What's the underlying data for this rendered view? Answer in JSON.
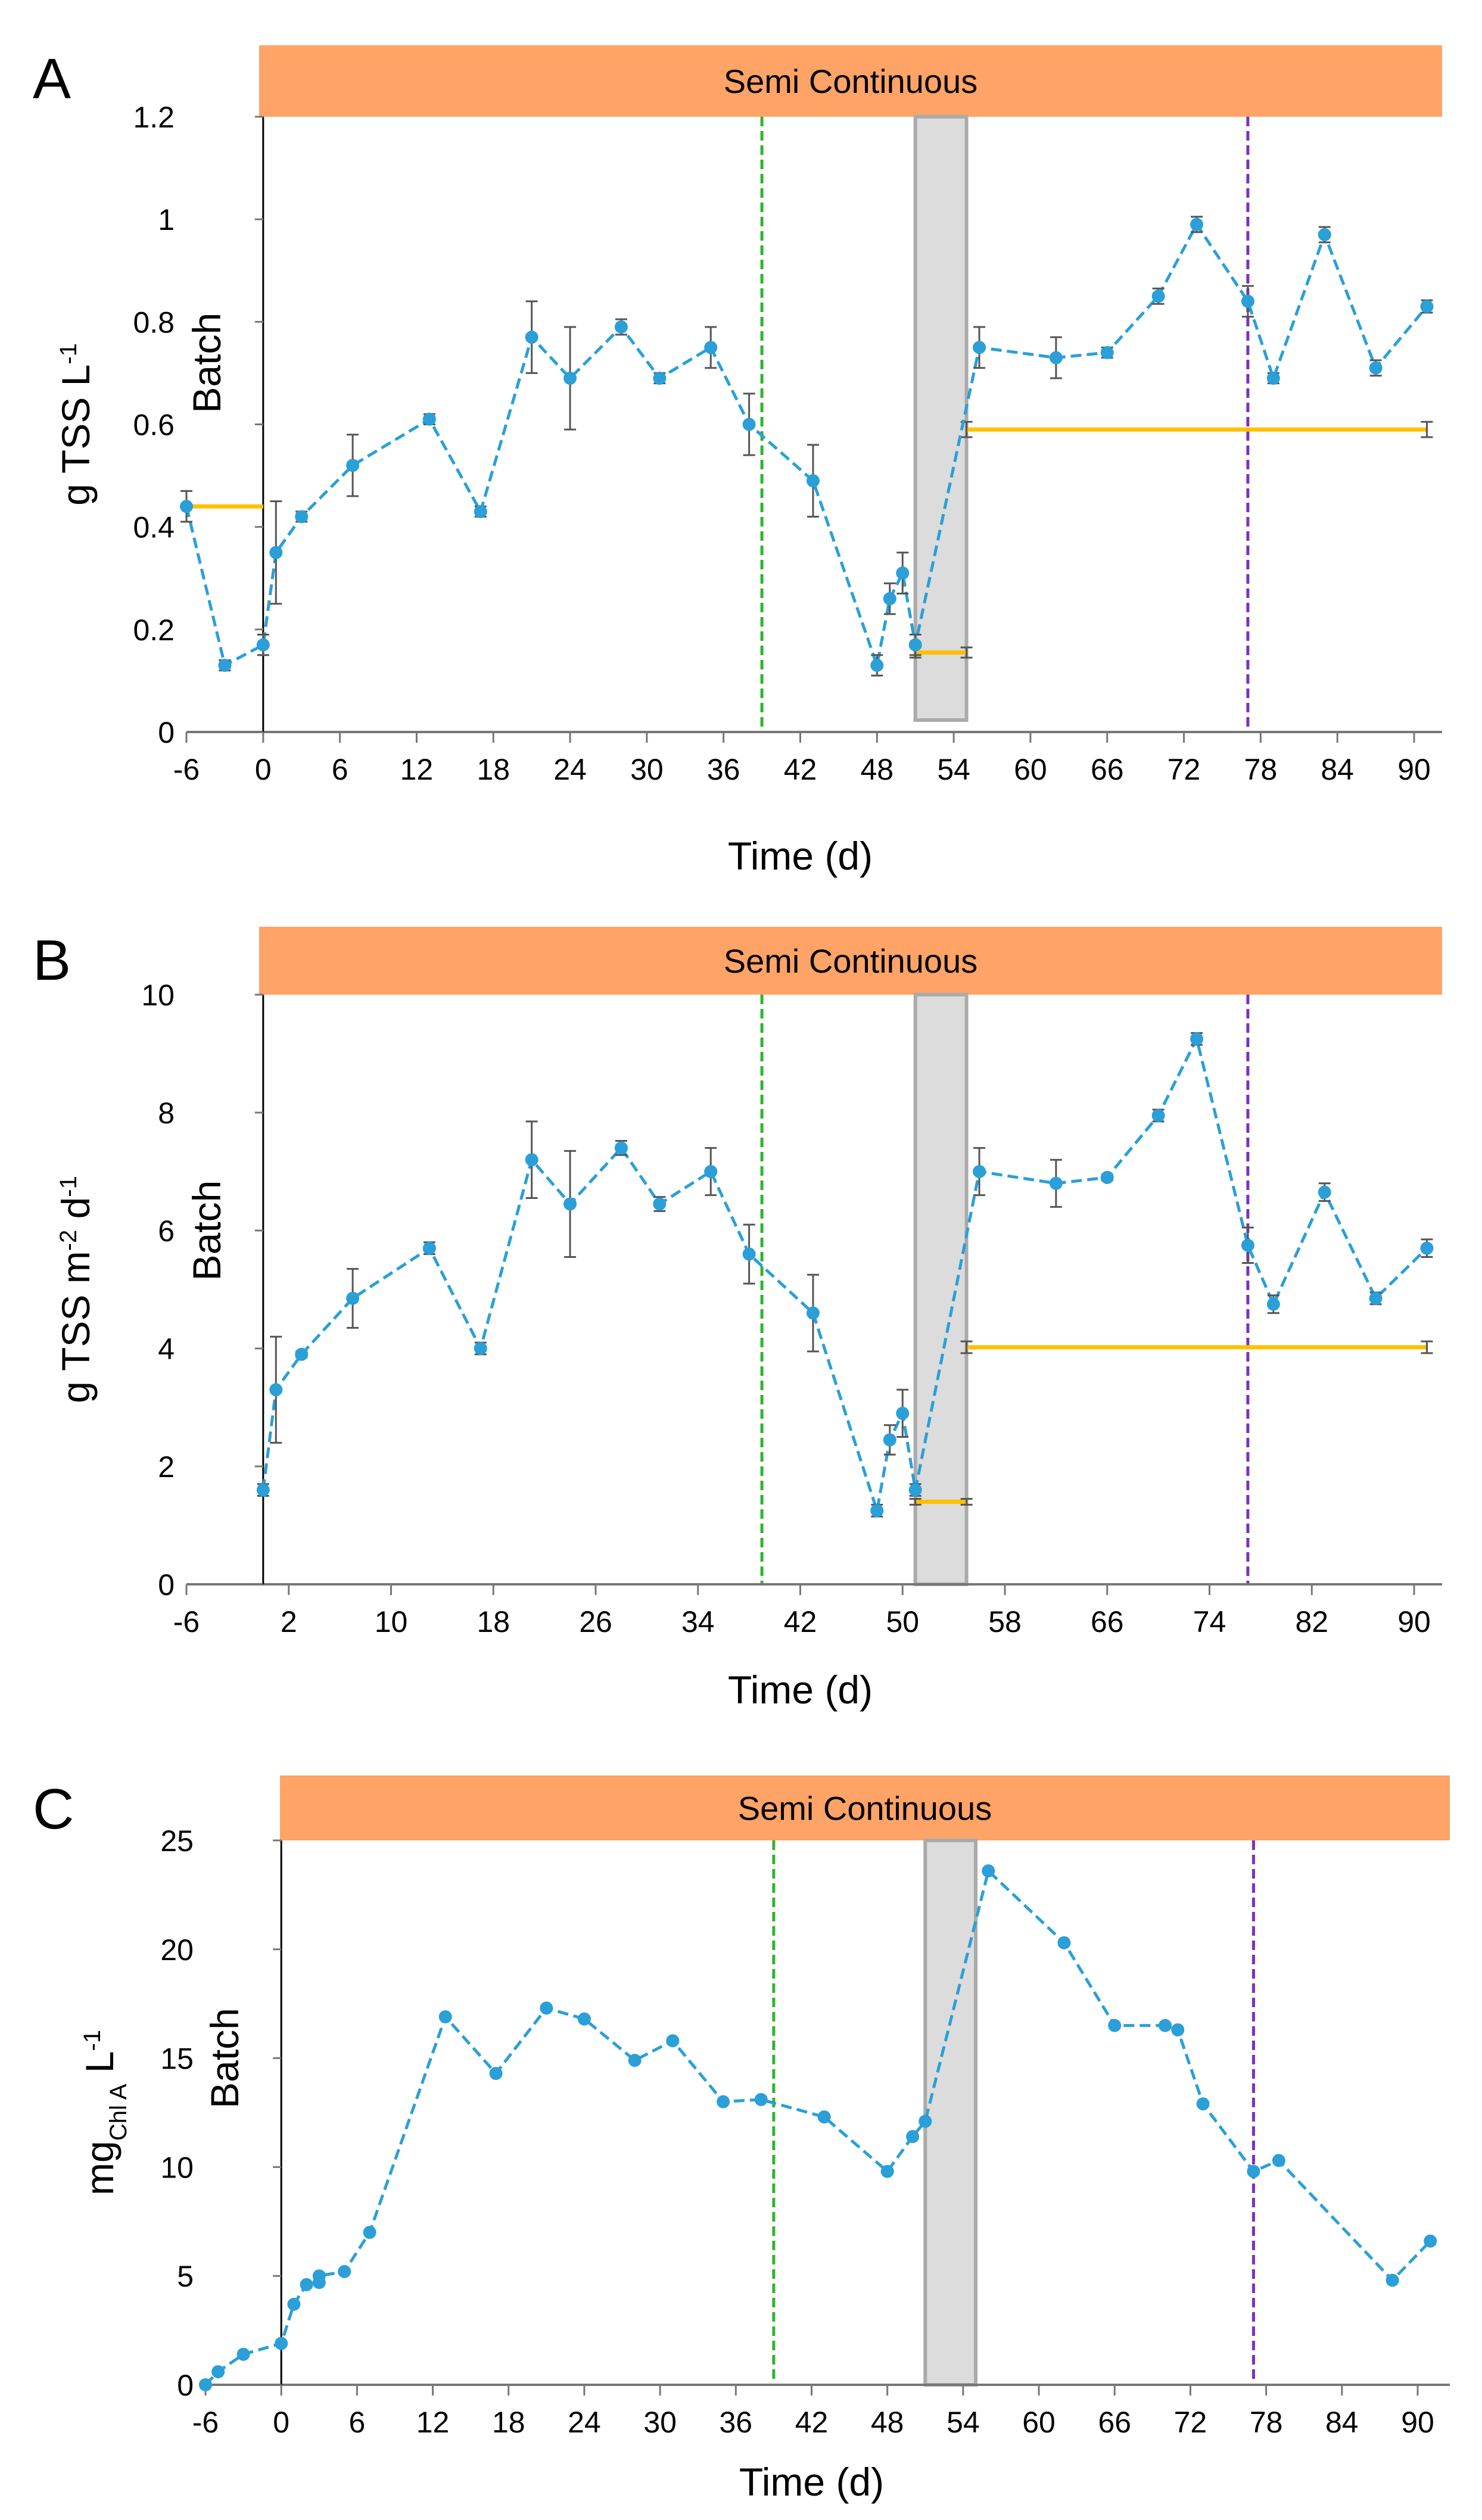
{
  "colors": {
    "series": "#2a9fd8",
    "band": "#ffa366",
    "gray": "#dcdcdc",
    "green": "#2db52d",
    "purple": "#7f2fbf",
    "yellow": "#ffc000",
    "err": "#555555"
  },
  "chart_data": [
    {
      "type": "line",
      "panel": "A",
      "band_label": "Semi Continuous",
      "batch_label": "Batch",
      "xlabel": "Time (d)",
      "ylabel": "g TSS L",
      "ylabel_sup": "-1",
      "xlim": [
        -6,
        92
      ],
      "ylim": [
        0,
        1.2
      ],
      "xticks": [
        -6,
        0,
        6,
        12,
        18,
        24,
        30,
        36,
        42,
        48,
        54,
        60,
        66,
        72,
        78,
        84,
        90
      ],
      "yticks": [
        0,
        0.2,
        0.4,
        0.6,
        0.8,
        1,
        1.2
      ],
      "ytick_labels": [
        "0",
        "0.2",
        "0.4",
        "0.6",
        "0.8",
        "1",
        "1.2"
      ],
      "gray_span": [
        51,
        55
      ],
      "green_line": 39,
      "purple_line": 77,
      "x": [
        -6,
        -3,
        0,
        1,
        3,
        7,
        13,
        17,
        21,
        24,
        28,
        31,
        35,
        38,
        43,
        48,
        49,
        50,
        51,
        56,
        62,
        66,
        70,
        73,
        77,
        79,
        83,
        87,
        91
      ],
      "y": [
        0.44,
        0.13,
        0.17,
        0.35,
        0.42,
        0.52,
        0.61,
        0.43,
        0.77,
        0.69,
        0.79,
        0.69,
        0.75,
        0.6,
        0.49,
        0.13,
        0.26,
        0.31,
        0.17,
        0.75,
        0.73,
        0.74,
        0.85,
        0.99,
        0.84,
        0.69,
        0.97,
        0.71,
        0.83
      ],
      "err": [
        0.03,
        0.01,
        0.02,
        0.1,
        0.01,
        0.06,
        0.01,
        0.01,
        0.07,
        0.1,
        0.015,
        0.01,
        0.04,
        0.06,
        0.07,
        0.02,
        0.03,
        0.04,
        0.02,
        0.04,
        0.04,
        0.01,
        0.015,
        0.015,
        0.03,
        0.01,
        0.015,
        0.015,
        0.012
      ],
      "mean_lines": [
        {
          "x": [
            -6,
            0
          ],
          "y": 0.44,
          "err": 0
        },
        {
          "x": [
            51,
            55
          ],
          "y": 0.155,
          "err": 0.01
        },
        {
          "x": [
            55,
            91
          ],
          "y": 0.59,
          "err": 0.015
        }
      ]
    },
    {
      "type": "line",
      "panel": "B",
      "band_label": "Semi Continuous",
      "batch_label": "Batch",
      "xlabel": "Time (d)",
      "ylabel": "g TSS m",
      "ylabel_sup": "-2",
      "ylabel_mid": " d",
      "ylabel_sup2": "-1",
      "xlim": [
        -6,
        92
      ],
      "ylim": [
        0,
        10
      ],
      "xticks": [
        -6,
        2,
        10,
        18,
        26,
        34,
        42,
        50,
        58,
        66,
        74,
        82,
        90
      ],
      "yticks": [
        0,
        2,
        4,
        6,
        8,
        10
      ],
      "ytick_labels": [
        "0",
        "2",
        "4",
        "6",
        "8",
        "10"
      ],
      "gray_span": [
        51,
        55
      ],
      "green_line": 39,
      "purple_line": 77,
      "x": [
        0,
        1,
        3,
        7,
        13,
        17,
        21,
        24,
        28,
        31,
        35,
        38,
        43,
        48,
        49,
        50,
        51,
        56,
        62,
        66,
        70,
        73,
        77,
        79,
        83,
        87,
        91
      ],
      "y": [
        1.6,
        3.3,
        3.9,
        4.85,
        5.7,
        4.0,
        7.2,
        6.45,
        7.4,
        6.45,
        7.0,
        5.6,
        4.6,
        1.25,
        2.45,
        2.9,
        1.6,
        7.0,
        6.8,
        6.9,
        7.95,
        9.25,
        5.75,
        4.75,
        6.65,
        4.85,
        5.7
      ],
      "err": [
        0.1,
        0.9,
        0.05,
        0.5,
        0.1,
        0.1,
        0.65,
        0.9,
        0.12,
        0.12,
        0.4,
        0.5,
        0.65,
        0.1,
        0.25,
        0.4,
        0.1,
        0.4,
        0.4,
        0.05,
        0.1,
        0.1,
        0.3,
        0.15,
        0.15,
        0.1,
        0.15
      ],
      "mean_lines": [
        {
          "x": [
            51,
            55
          ],
          "y": 1.4,
          "err": 0.05
        },
        {
          "x": [
            55,
            91
          ],
          "y": 4.02,
          "err": 0.1
        }
      ]
    },
    {
      "type": "line",
      "panel": "C",
      "band_label": "Semi Continuous",
      "batch_label": "Batch",
      "xlabel": "Time (d)",
      "ylabel": "mg",
      "ylabel_sub": "Chl A",
      "ylabel_mid": " L",
      "ylabel_sup": "-1",
      "xlim": [
        -6,
        92
      ],
      "ylim": [
        0,
        25
      ],
      "xticks": [
        -6,
        0,
        6,
        12,
        18,
        24,
        30,
        36,
        42,
        48,
        54,
        60,
        66,
        72,
        78,
        84,
        90
      ],
      "yticks": [
        0,
        5,
        10,
        15,
        20,
        25
      ],
      "ytick_labels": [
        "0",
        "5",
        "10",
        "15",
        "20",
        "25"
      ],
      "gray_span": [
        51,
        55
      ],
      "green_line": 39,
      "purple_line": 77,
      "x": [
        -6,
        -5,
        -3,
        0,
        1,
        2,
        3,
        3,
        5,
        7,
        13,
        17,
        21,
        24,
        28,
        31,
        35,
        38,
        43,
        48,
        50,
        51,
        56,
        62,
        66,
        70,
        71,
        73,
        77,
        79,
        88,
        91
      ],
      "y": [
        0,
        0.6,
        1.4,
        1.9,
        3.7,
        4.6,
        4.7,
        5.0,
        5.2,
        7.0,
        16.9,
        14.3,
        17.3,
        16.8,
        14.9,
        15.8,
        13.0,
        13.1,
        12.3,
        9.8,
        11.4,
        12.1,
        23.6,
        20.3,
        16.5,
        16.5,
        16.3,
        12.9,
        9.8,
        10.3,
        4.8,
        6.6
      ],
      "err": [],
      "mean_lines": []
    }
  ]
}
